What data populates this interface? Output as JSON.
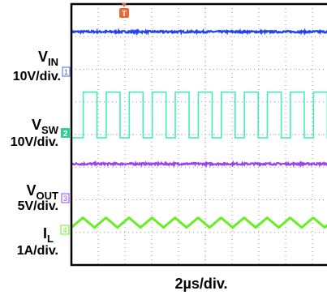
{
  "chart_data": {
    "type": "line",
    "title": "",
    "time_scale": "2µs/div.",
    "grid": true,
    "divisions": {
      "horizontal": 10,
      "vertical": 8
    },
    "trigger_marker": "T",
    "series": [
      {
        "name": "V_IN",
        "label_main": "V",
        "label_sub": "IN",
        "scale": "10V/div.",
        "channel": "1",
        "color": "#2244ee",
        "waveform": "dc",
        "level_div": 7.15,
        "noise_div": 0.03
      },
      {
        "name": "V_SW",
        "label_main": "V",
        "label_sub": "SW",
        "scale": "10V/div.",
        "channel": "2",
        "color": "#44eebb",
        "waveform": "square",
        "low_div": 3.9,
        "high_div": 5.3,
        "period_div": 0.86,
        "duty": 0.6,
        "first_rise_div": 0.44,
        "start_div": 0.0
      },
      {
        "name": "V_OUT",
        "label_main": "V",
        "label_sub": "OUT",
        "scale": "5V/div.",
        "channel": "3",
        "color": "#9944ee",
        "waveform": "dc",
        "level_div": 3.1,
        "noise_div": 0.03
      },
      {
        "name": "I_L",
        "label_main": "I",
        "label_sub": "L",
        "scale": "1A/div.",
        "channel": "4",
        "color": "#66ee22",
        "waveform": "triangle",
        "center_div": 1.3,
        "amplitude_div": 0.15,
        "period_div": 0.86,
        "phase_div": 0.0
      }
    ]
  }
}
